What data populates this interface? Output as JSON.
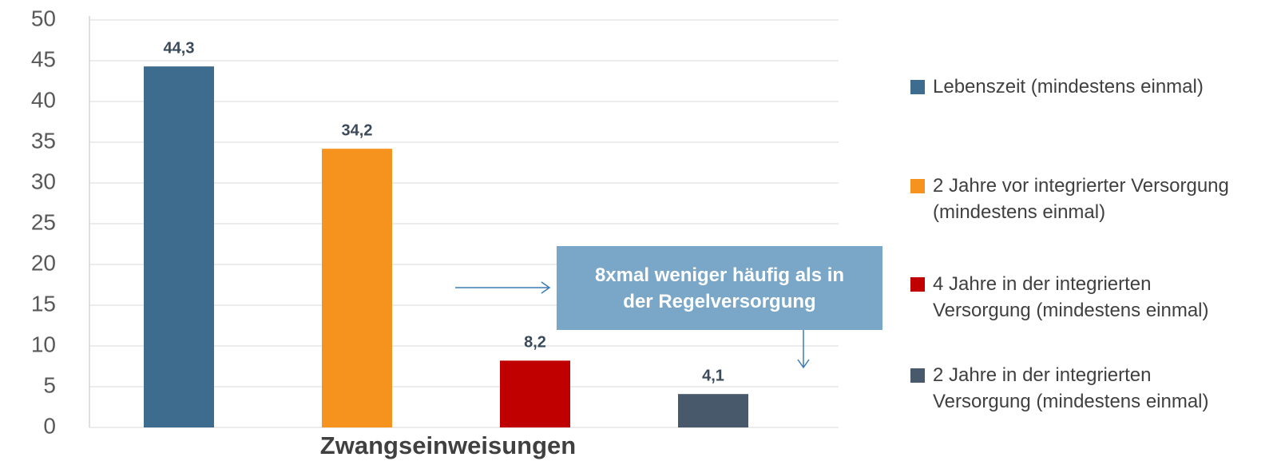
{
  "chart_data": {
    "type": "bar",
    "categories": [
      "Zwangseinweisungen"
    ],
    "series": [
      {
        "name": "Lebenszeit (mindestens einmal)",
        "color": "#3e6c8f",
        "values": [
          44.3
        ],
        "value_labels": [
          "44,3"
        ]
      },
      {
        "name": "2 Jahre vor integrierter Versorgung (mindestens einmal)",
        "color": "#f5931e",
        "values": [
          34.2
        ],
        "value_labels": [
          "34,2"
        ]
      },
      {
        "name": "4 Jahre in der integrierten Versorgung (mindestens einmal)",
        "color": "#c00000",
        "values": [
          8.2
        ],
        "value_labels": [
          "8,2"
        ]
      },
      {
        "name": "2 Jahre in der integrierten Versorgung (mindestens einmal)",
        "color": "#47596b",
        "values": [
          4.1
        ],
        "value_labels": [
          "4,1"
        ]
      }
    ],
    "annotation": "8xmal weniger häufig als in der Regelversorgung",
    "ylim": [
      0,
      50
    ],
    "yticks": [
      0,
      5,
      10,
      15,
      20,
      25,
      30,
      35,
      40,
      45,
      50
    ],
    "grid": true,
    "legend": "right"
  }
}
